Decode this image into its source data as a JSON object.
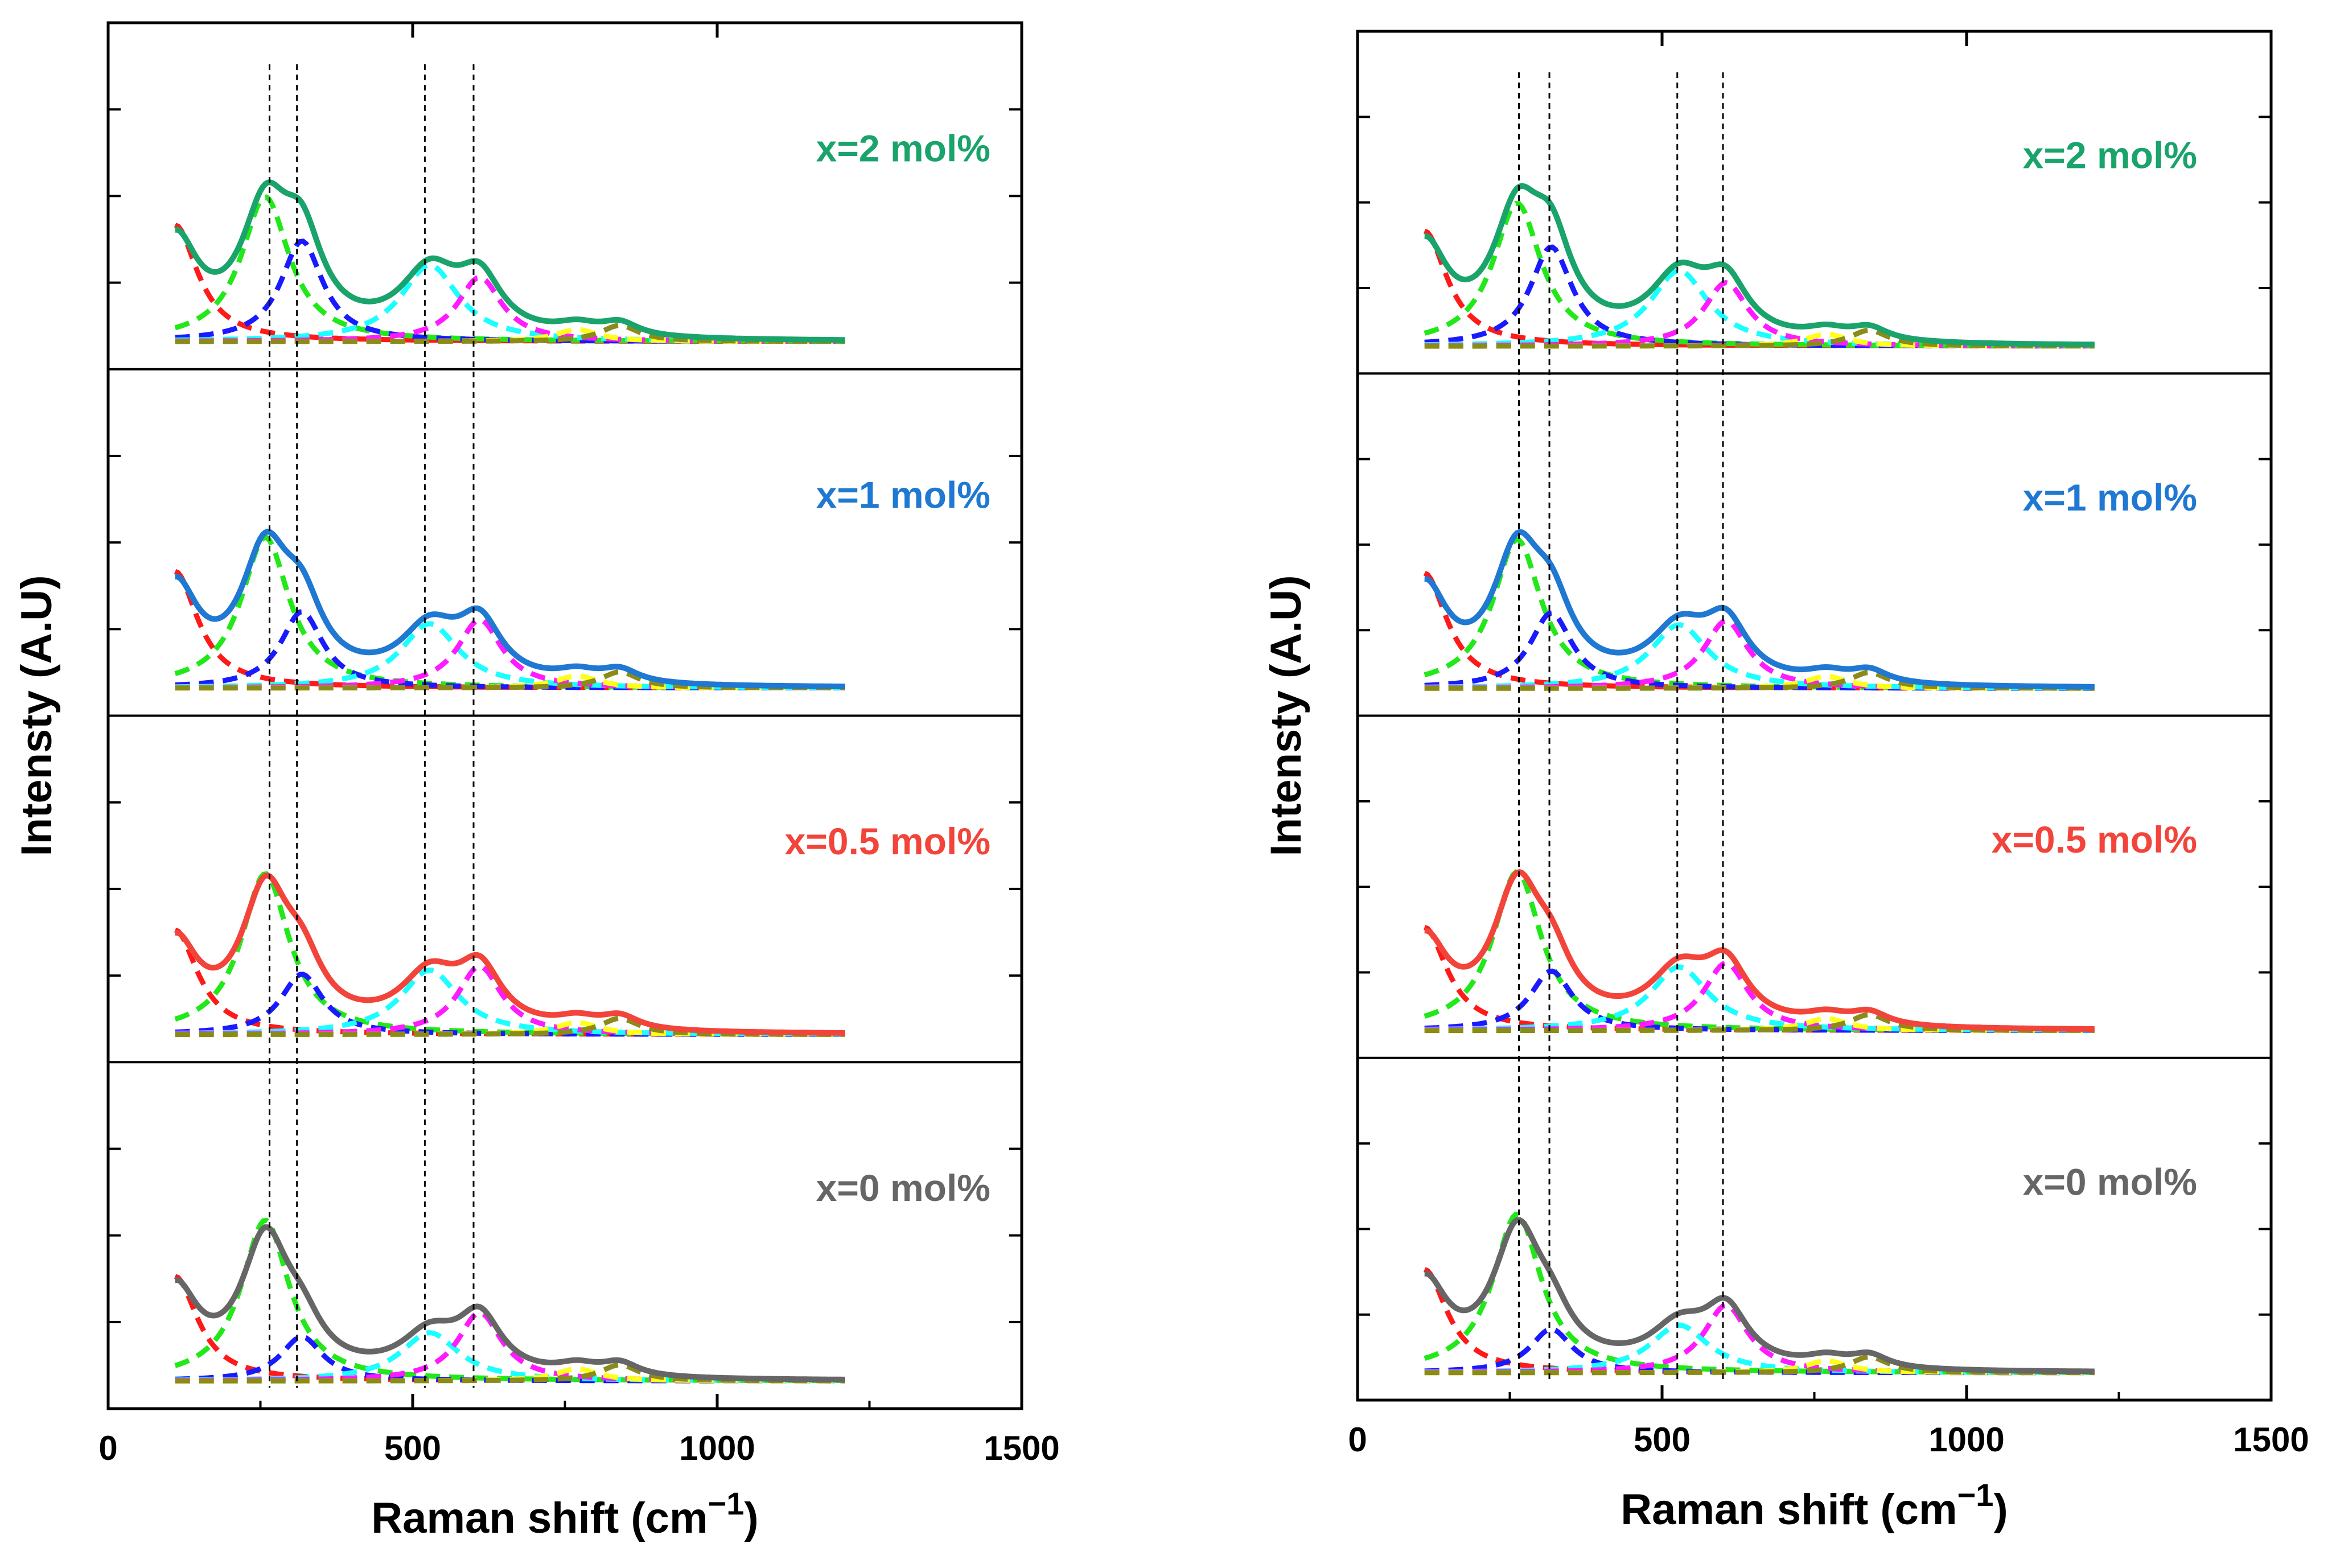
{
  "chart_data": [
    {
      "type": "line",
      "panel": "left",
      "xlabel": "Raman shift (cm",
      "xlabel_superscript": "−1",
      "xlabel_close": ")",
      "ylabel": "Intensty (A.U)",
      "xlim": [
        0,
        1500
      ],
      "xticks": [
        "0",
        "500",
        "1000",
        "1500"
      ],
      "ylim": [
        0,
        1
      ],
      "yticks": [],
      "guide_lines_cm": [
        265,
        310,
        520,
        600
      ],
      "series": [
        {
          "name": "x=2 mol%",
          "label": "x=2 mol%",
          "color": "#1aa36b"
        },
        {
          "name": "x=1 mol%",
          "label": "x=1 mol%",
          "color": "#1f78d1"
        },
        {
          "name": "x=0.5 mol%",
          "label": "x=0.5 mol%",
          "color": "#f2443a"
        },
        {
          "name": "x=0 mol%",
          "label": "x=0 mol%",
          "color": "#666666"
        }
      ],
      "peak_fit_components": [
        {
          "center_cm": 110,
          "color": "#ff1a1a"
        },
        {
          "center_cm": 258,
          "color": "#22e81a"
        },
        {
          "center_cm": 318,
          "color": "#1a1aff"
        },
        {
          "center_cm": 528,
          "color": "#1affff"
        },
        {
          "center_cm": 610,
          "color": "#ff1aff"
        },
        {
          "center_cm": 770,
          "color": "#ffff1a"
        },
        {
          "center_cm": 840,
          "color": "#8b8b1a"
        }
      ]
    },
    {
      "type": "line",
      "panel": "right",
      "xlabel": "Raman shift (cm",
      "xlabel_superscript": "−1",
      "xlabel_close": ")",
      "ylabel": "Intensty (A.U)",
      "xlim": [
        0,
        1500
      ],
      "xticks": [
        "0",
        "500",
        "1000",
        "1500"
      ],
      "ylim": [
        0,
        1
      ],
      "yticks": [],
      "guide_lines_cm": [
        265,
        315,
        525,
        600
      ],
      "series": [
        {
          "name": "x=2 mol%",
          "label": "x=2 mol%",
          "color": "#1aa36b"
        },
        {
          "name": "x=1 mol%",
          "label": "x=1 mol%",
          "color": "#1f78d1"
        },
        {
          "name": "x=0.5 mol%",
          "label": "x=0.5 mol%",
          "color": "#f2443a"
        },
        {
          "name": "x=0 mol%",
          "label": "x=0 mol%",
          "color": "#666666"
        }
      ],
      "peak_fit_components": [
        {
          "center_cm": 110,
          "color": "#ff1a1a"
        },
        {
          "center_cm": 262,
          "color": "#22e81a"
        },
        {
          "center_cm": 318,
          "color": "#1a1aff"
        },
        {
          "center_cm": 528,
          "color": "#1affff"
        },
        {
          "center_cm": 605,
          "color": "#ff1aff"
        },
        {
          "center_cm": 770,
          "color": "#ffff1a"
        },
        {
          "center_cm": 840,
          "color": "#8b8b1a"
        }
      ]
    }
  ]
}
